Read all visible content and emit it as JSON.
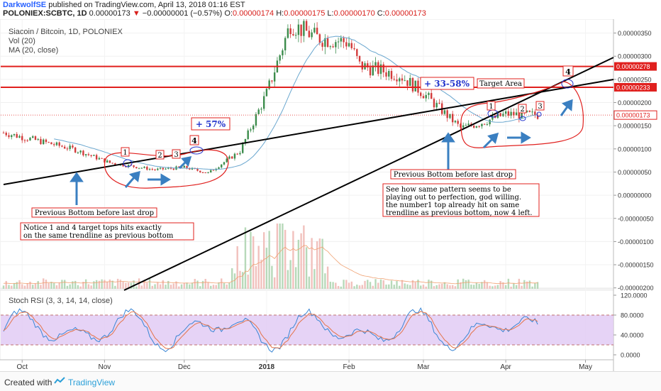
{
  "header": {
    "author": "DarkwolfSE",
    "published": "published on TradingView.com, April 13, 2018 01:16 EST",
    "symbol": "POLONIEX:SCBTC, 1D",
    "last": "0.00000173",
    "change_arrow": "▼",
    "change": "−0.00000001 (−0.57%)",
    "o_label": "O:",
    "o": "0.00000174",
    "h_label": "H:",
    "h": "0.00000175",
    "l_label": "L:",
    "l": "0.00000170",
    "c_label": "C:",
    "c": "0.00000173"
  },
  "legend": {
    "title": "Siacoin / Bitcoin, 1D, POLONIEX",
    "vol": "Vol (20)",
    "ma": "MA (20, close)",
    "rsi": "Stoch RSI (3, 3, 14, 14, close)"
  },
  "footer": {
    "created_with": "Created with",
    "brand": "TradingView"
  },
  "colors": {
    "up": "#3c8c4c",
    "down": "#d33b3b",
    "ma": "#6aa7cf",
    "annotation": "#e0201e",
    "arrow": "#3a7fc1",
    "rsi_k": "#3a86d4",
    "rsi_d": "#e4744a",
    "rsi_band": "#e0c8f4"
  },
  "chart_data": [
    {
      "type": "candlestick",
      "title": "Siacoin / Bitcoin, 1D, POLONIEX",
      "y_ticks": [
        "0.00000350",
        "0.00000300",
        "0.00000250",
        "0.00000200",
        "0.00000150",
        "0.00000100",
        "0.00000050",
        "0.00000000",
        "-0.00000050",
        "-0.00000100",
        "-0.00000150",
        "-0.00000200"
      ],
      "x_ticks": [
        "Oct",
        "Nov",
        "Dec",
        "2018",
        "Feb",
        "Mar",
        "Apr",
        "May"
      ],
      "ylim": [
        -2.02e-06,
        3.8e-06
      ],
      "price_labels": [
        {
          "value": 2.78e-06,
          "text": "0.00000278",
          "style": "horizontal-line"
        },
        {
          "value": 2.33e-06,
          "text": "0.00000233",
          "style": "horizontal-line"
        },
        {
          "value": 1.73e-06,
          "text": "0.00000173",
          "style": "last-price"
        }
      ],
      "horizontal_lines": [
        2.78e-06,
        2.33e-06
      ],
      "last_price": 1.73e-06,
      "close_path_keypoints": [
        {
          "date": "2017-09-24",
          "close": 1.35e-06
        },
        {
          "date": "2017-10-20",
          "close": 1e-06
        },
        {
          "date": "2017-11-03",
          "close": 7e-07
        },
        {
          "date": "2017-11-20",
          "close": 5.5e-07
        },
        {
          "date": "2017-12-01",
          "close": 6e-07
        },
        {
          "date": "2017-12-10",
          "close": 4.8e-07
        },
        {
          "date": "2017-12-22",
          "close": 9.5e-07
        },
        {
          "date": "2018-01-01",
          "close": 2.2e-06
        },
        {
          "date": "2018-01-10",
          "close": 3.7e-06
        },
        {
          "date": "2018-01-20",
          "close": 3.4e-06
        },
        {
          "date": "2018-02-01",
          "close": 3.3e-06
        },
        {
          "date": "2018-02-05",
          "close": 2.8e-06
        },
        {
          "date": "2018-02-20",
          "close": 2.6e-06
        },
        {
          "date": "2018-03-01",
          "close": 2.2e-06
        },
        {
          "date": "2018-03-15",
          "close": 1.45e-06
        },
        {
          "date": "2018-03-22",
          "close": 1.55e-06
        },
        {
          "date": "2018-04-01",
          "close": 1.75e-06
        },
        {
          "date": "2018-04-13",
          "close": 1.73e-06
        }
      ],
      "annotations": {
        "texts": [
          "+ 57%",
          "+ 33-58%",
          "Target Area",
          "Previous Bottom before last drop",
          "Previous Bottom before last drop",
          "Notice 1 and 4 target tops hits exactly",
          "on the same trendline as previous bottom",
          "See how same pattern seems to be",
          "playing out to perfection, god willing.",
          "the number1 top already hit on same",
          "trendline as previous bottom, now 4 left."
        ],
        "markers_left": [
          "1",
          "2",
          "3",
          "4"
        ],
        "markers_right": [
          "1",
          "2",
          "3",
          "4"
        ]
      }
    },
    {
      "type": "line",
      "title": "Stoch RSI (3, 3, 14, 14, close)",
      "y_ticks": [
        "120.0000",
        "80.0000",
        "40.0000",
        "0.0000"
      ],
      "band": [
        20,
        80
      ],
      "ylim": [
        -10,
        130
      ]
    }
  ]
}
